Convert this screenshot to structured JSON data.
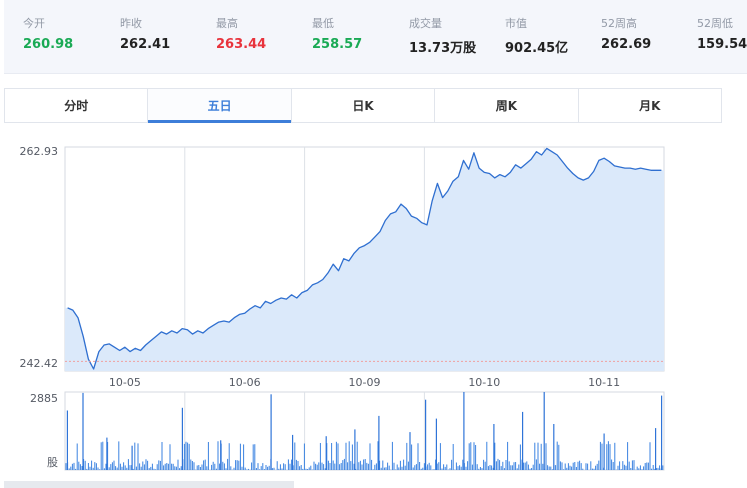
{
  "stats": [
    {
      "label": "今开",
      "value": "260.98",
      "color": "#1aaa55"
    },
    {
      "label": "昨收",
      "value": "262.41",
      "color": "#222222"
    },
    {
      "label": "最高",
      "value": "263.44",
      "color": "#e8333c"
    },
    {
      "label": "最低",
      "value": "258.57",
      "color": "#1aaa55"
    },
    {
      "label": "成交量",
      "value": "13.73万股",
      "color": "#222222"
    },
    {
      "label": "市值",
      "value": "902.45亿",
      "color": "#222222"
    },
    {
      "label": "52周高",
      "value": "262.69",
      "color": "#222222"
    },
    {
      "label": "52周低",
      "value": "159.54",
      "color": "#222222"
    }
  ],
  "tabs": [
    {
      "label": "分时",
      "active": false
    },
    {
      "label": "五日",
      "active": true
    },
    {
      "label": "日K",
      "active": false
    },
    {
      "label": "周K",
      "active": false
    },
    {
      "label": "月K",
      "active": false
    }
  ],
  "chart_data": {
    "type": "area",
    "x": [
      "10-05",
      "10-06",
      "10-09",
      "10-10",
      "10-11"
    ],
    "y_ticks": [
      "262.93",
      "242.42"
    ],
    "ylim": [
      242.42,
      262.93
    ],
    "reference_value": 243.3,
    "series": [
      {
        "values": [
          [
            248.2,
            248.0,
            247.3,
            245.6,
            243.5,
            242.6,
            244.2,
            244.8,
            244.9,
            244.6,
            244.3,
            244.6,
            244.2,
            244.5,
            244.3,
            244.8,
            245.2,
            245.6,
            246.0,
            245.8,
            246.1,
            245.9,
            246.3
          ],
          [
            246.2,
            245.8,
            246.1,
            245.9,
            246.3,
            246.6,
            246.9,
            247.0,
            246.9,
            247.3,
            247.6,
            247.7,
            248.1,
            248.4,
            248.2,
            248.8,
            248.6,
            248.9,
            249.1,
            249.0,
            249.4,
            249.1,
            249.6
          ],
          [
            249.8,
            250.3,
            250.5,
            250.8,
            251.4,
            252.2,
            251.6,
            252.7,
            252.5,
            253.2,
            253.7,
            253.9,
            254.2,
            254.7,
            255.2,
            256.2,
            256.8,
            257.0,
            257.7,
            257.3,
            256.6,
            256.4,
            256.0
          ],
          [
            255.8,
            258.0,
            259.6,
            258.3,
            258.9,
            259.8,
            260.2,
            261.7,
            260.9,
            262.4,
            261.0,
            260.6,
            260.5,
            260.1,
            260.4,
            260.2,
            260.6,
            261.3,
            261.0,
            261.4,
            261.8,
            262.5,
            262.2
          ],
          [
            262.8,
            262.5,
            262.2,
            261.6,
            261.0,
            260.5,
            260.1,
            259.9,
            260.1,
            260.7,
            261.7,
            261.9,
            261.6,
            261.2,
            261.1,
            261.0,
            261.0,
            260.9,
            261.0,
            260.9,
            260.8,
            260.8,
            260.8
          ]
        ]
      }
    ],
    "volume_ticks": [
      "2885",
      "股"
    ],
    "volume_max": 2885,
    "volume": [
      {
        "day": 0,
        "position": 0.02,
        "value": 2200
      },
      {
        "day": 0,
        "position": 0.15,
        "value": 2850
      },
      {
        "day": 0,
        "position": 0.35,
        "value": 1200
      },
      {
        "day": 0,
        "position": 0.56,
        "value": 900
      },
      {
        "day": 0,
        "position": 0.98,
        "value": 2300
      },
      {
        "day": 1,
        "position": 0.3,
        "value": 1100
      },
      {
        "day": 1,
        "position": 0.72,
        "value": 2800
      },
      {
        "day": 1,
        "position": 0.9,
        "value": 1300
      },
      {
        "day": 2,
        "position": 0.18,
        "value": 1250
      },
      {
        "day": 2,
        "position": 0.42,
        "value": 1500
      },
      {
        "day": 2,
        "position": 0.62,
        "value": 2000
      },
      {
        "day": 2,
        "position": 0.88,
        "value": 1400
      },
      {
        "day": 3,
        "position": 0.01,
        "value": 2600
      },
      {
        "day": 3,
        "position": 0.1,
        "value": 1900
      },
      {
        "day": 3,
        "position": 0.33,
        "value": 2885
      },
      {
        "day": 3,
        "position": 0.58,
        "value": 1700
      },
      {
        "day": 3,
        "position": 0.82,
        "value": 2150
      },
      {
        "day": 4,
        "position": 0.0,
        "value": 2885
      },
      {
        "day": 4,
        "position": 0.08,
        "value": 1700
      },
      {
        "day": 4,
        "position": 0.5,
        "value": 1350
      },
      {
        "day": 4,
        "position": 0.93,
        "value": 1550
      },
      {
        "day": 4,
        "position": 0.98,
        "value": 2750
      }
    ]
  }
}
